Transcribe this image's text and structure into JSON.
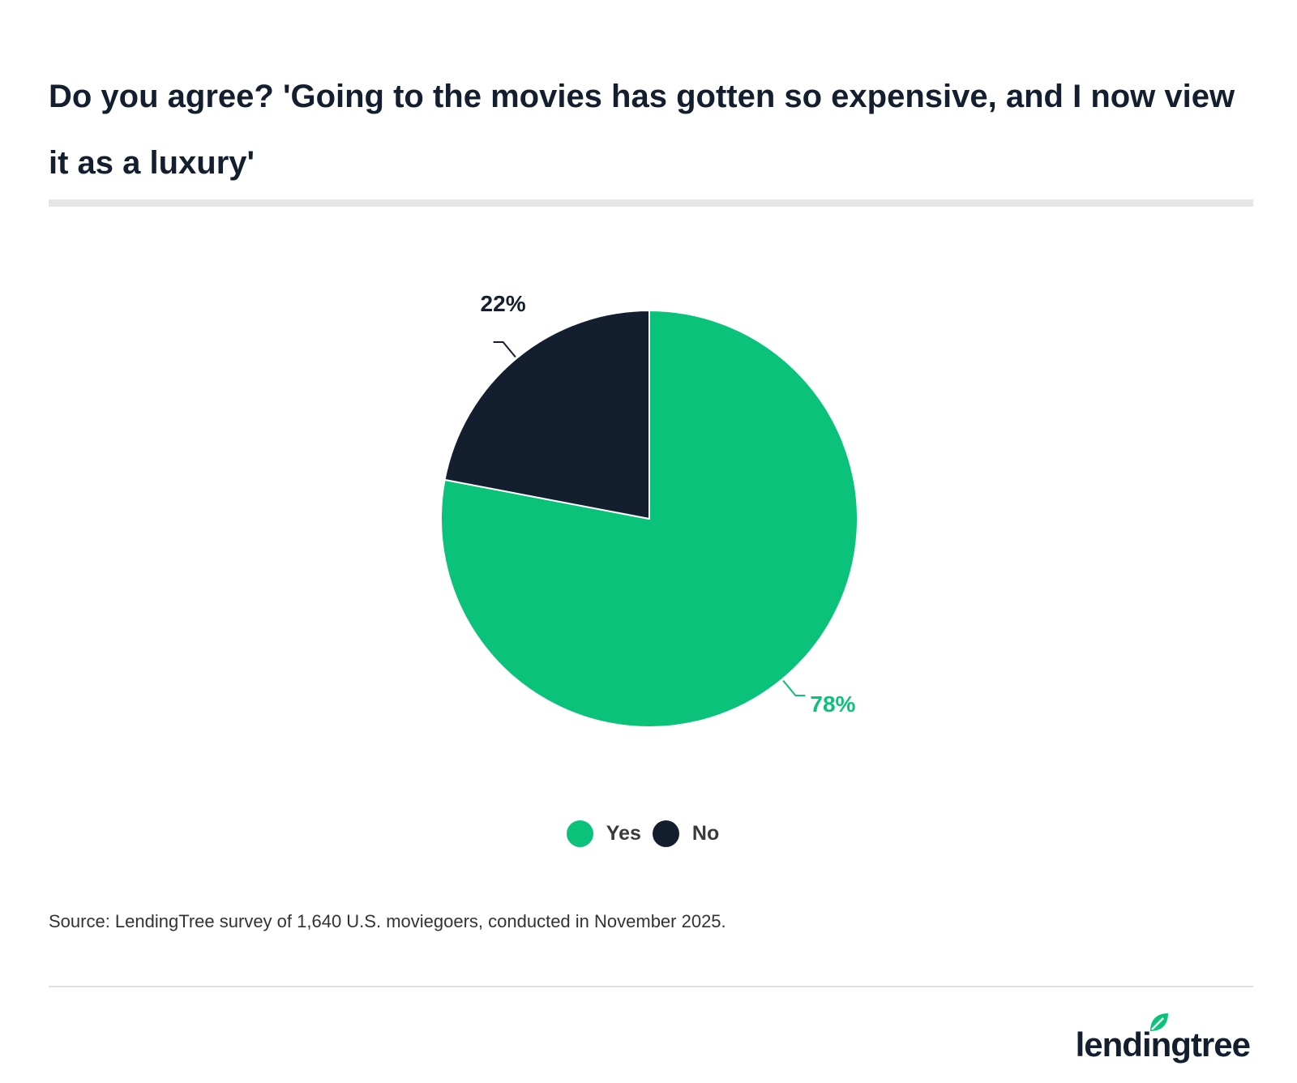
{
  "title": "Do you agree? 'Going to the movies has gotten so expensive, and I now view it as a luxury'",
  "source": "Source: LendingTree survey of 1,640 U.S. moviegoers, conducted in November 2025.",
  "brand": "lendingtree",
  "chart_data": {
    "type": "pie",
    "title": "Do you agree? 'Going to the movies has gotten so expensive, and I now view it as a luxury'",
    "slices": [
      {
        "label": "Yes",
        "value": 78,
        "display": "78%",
        "color": "#0bc27a"
      },
      {
        "label": "No",
        "value": 22,
        "display": "22%",
        "color": "#131f2e"
      }
    ],
    "legend": {
      "placement": "bottom",
      "items": [
        "Yes",
        "No"
      ]
    }
  },
  "legend": {
    "items": [
      {
        "label": "Yes",
        "color": "#0bc27a"
      },
      {
        "label": "No",
        "color": "#131f2e"
      }
    ]
  },
  "colors": {
    "accent": "#0bc27a",
    "dark": "#131f2e"
  }
}
